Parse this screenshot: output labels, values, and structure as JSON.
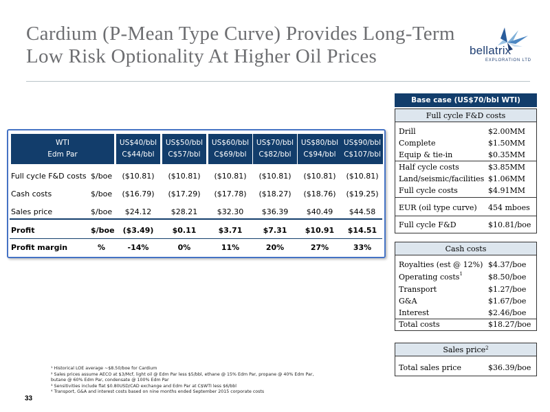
{
  "slide": {
    "title_line1": "Cardium (P-Mean Type Curve) Provides Long-Term",
    "title_line2": "Low Risk Optionality At Higher Oil Prices",
    "logo_text": "bellatrix",
    "logo_subtext": "EXPLORATION LTD",
    "page_number": "33"
  },
  "main_table": {
    "header": {
      "label_line1": "WTI",
      "label_line2": "Edm Par",
      "columns": [
        {
          "usd": "US$40/bbl",
          "cad": "C$44/bbl"
        },
        {
          "usd": "US$50/bbl",
          "cad": "C$57/bbl"
        },
        {
          "usd": "US$60/bbl",
          "cad": "C$69/bbl"
        },
        {
          "usd": "US$70/bbl",
          "cad": "C$82/bbl"
        },
        {
          "usd": "US$80/bbl",
          "cad": "C$94/bbl"
        },
        {
          "usd": "US$90/bbl",
          "cad": "C$107/bbl"
        }
      ]
    },
    "rows": [
      {
        "label": "Full cycle F&D costs",
        "unit": "$/boe",
        "values": [
          "($10.81)",
          "($10.81)",
          "($10.81)",
          "($10.81)",
          "($10.81)",
          "($10.81)"
        ]
      },
      {
        "label": "Cash costs",
        "unit": "$/boe",
        "values": [
          "($16.79)",
          "($17.29)",
          "($17.78)",
          "($18.27)",
          "($18.76)",
          "($19.25)"
        ]
      },
      {
        "label": "Sales price",
        "unit": "$/boe",
        "values": [
          "$24.12",
          "$28.21",
          "$32.30",
          "$36.39",
          "$40.49",
          "$44.58"
        ]
      },
      {
        "label": "Profit",
        "unit": "$/boe",
        "values": [
          "($3.49)",
          "$0.11",
          "$3.71",
          "$7.31",
          "$10.91",
          "$14.51"
        ]
      },
      {
        "label": "Profit margin",
        "unit": "%",
        "values": [
          "-14%",
          "0%",
          "11%",
          "20%",
          "27%",
          "33%"
        ]
      }
    ]
  },
  "base_case": {
    "heading": "Base case (US$70/bbl WTI)",
    "fd_panel": {
      "subheading": "Full cycle F&D costs",
      "rows": [
        {
          "label": "Drill",
          "value": "$2.00MM"
        },
        {
          "label": "Complete",
          "value": "$1.50MM"
        },
        {
          "label": "Equip & tie-in",
          "value": "$0.35MM"
        },
        {
          "label": "Half cycle costs",
          "value": "$3.85MM"
        },
        {
          "label": "Land/seismic/facilities",
          "value": "$1.06MM"
        },
        {
          "label": "Full cycle costs",
          "value": "$4.91MM"
        },
        {
          "label": "EUR (oil type curve)",
          "value": "454 mboes"
        },
        {
          "label": "Full cycle F&D",
          "value": "$10.81/boe"
        }
      ]
    },
    "cash_panel": {
      "subheading": "Cash costs",
      "rows": [
        {
          "label": "Royalties (est @ 12%)",
          "value": "$4.37/boe"
        },
        {
          "label": "Operating costs",
          "sup": "1",
          "value": "$8.50/boe"
        },
        {
          "label": "Transport",
          "value": "$1.27/boe"
        },
        {
          "label": "G&A",
          "value": "$1.67/boe"
        },
        {
          "label": "Interest",
          "value": "$2.46/boe"
        },
        {
          "label": "Total costs",
          "value": "$18.27/boe"
        }
      ]
    },
    "sales_panel": {
      "subheading": "Sales price",
      "sup": "2",
      "rows": [
        {
          "label": "Total sales price",
          "value": "$36.39/boe"
        }
      ]
    }
  },
  "footnotes": [
    "¹ Historical LOE average ~$8.50/boe for Cardium",
    "² Sales prices assume AECO at $3/Mcf, light oil @ Edm Par less $5/bbl, ethane @ 15% Edm Par, propane @ 40% Edm Par,",
    "butane @ 60% Edm Par, condensate @ 100% Edm Par",
    "³ Sensitivities include flat $0.80USD/CAD exchange and Edm Par at C$WTI less $6/bbl",
    "⁴ Transport, G&A and interest costs based on nine months ended September 2015 corporate costs"
  ]
}
